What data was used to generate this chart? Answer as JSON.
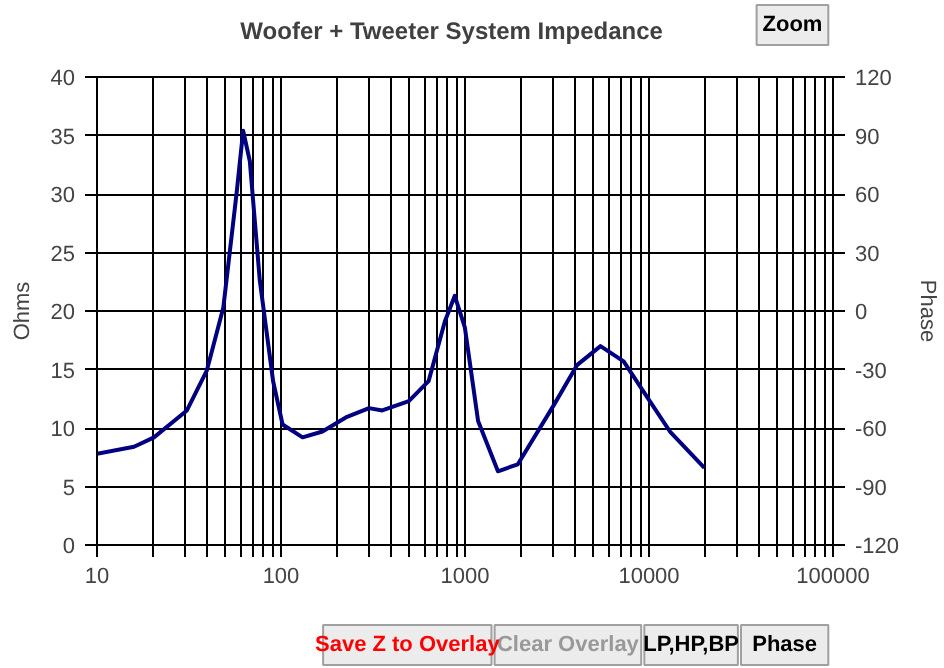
{
  "chart_data": {
    "type": "line",
    "title": "Woofer + Tweeter     System Impedance",
    "ylabel": "Ohms",
    "y2label": "Phase",
    "x": [
      10,
      15.9,
      20.4,
      30.8,
      39.5,
      48.6,
      57.3,
      62.3,
      67.7,
      76.7,
      90.6,
      102,
      131,
      168,
      225,
      301,
      355,
      495,
      634,
      777,
      880,
      998,
      1178,
      1510,
      1937,
      3050,
      4075,
      5450,
      7280,
      10100,
      13000,
      20000
    ],
    "series": [
      {
        "color": "#000080",
        "values": [
          7.8,
          8.4,
          9.2,
          11.5,
          14.9,
          20.3,
          30,
          35.4,
          32.8,
          22.6,
          14,
          10.3,
          9.2,
          9.7,
          10.9,
          11.7,
          11.5,
          12.3,
          14,
          19.1,
          21.3,
          18.6,
          10.6,
          6.3,
          6.9,
          12,
          15.4,
          17,
          15.7,
          12.3,
          9.7,
          6.6
        ]
      }
    ],
    "log": "x",
    "xlim": [
      10,
      100000
    ],
    "xticks": [
      10,
      {
        "value": 20,
        "label": null
      },
      {
        "value": 30,
        "label": null
      },
      {
        "value": 40,
        "label": null
      },
      {
        "value": 50,
        "label": null
      },
      {
        "value": 60,
        "label": null
      },
      {
        "value": 70,
        "label": null
      },
      {
        "value": 80,
        "label": null
      },
      {
        "value": 90,
        "label": null
      },
      100,
      {
        "value": 200,
        "label": null
      },
      {
        "value": 300,
        "label": null
      },
      {
        "value": 400,
        "label": null
      },
      {
        "value": 500,
        "label": null
      },
      {
        "value": 600,
        "label": null
      },
      {
        "value": 700,
        "label": null
      },
      {
        "value": 800,
        "label": null
      },
      {
        "value": 900,
        "label": null
      },
      1000,
      {
        "value": 2000,
        "label": null
      },
      {
        "value": 3000,
        "label": null
      },
      {
        "value": 4000,
        "label": null
      },
      {
        "value": 5000,
        "label": null
      },
      {
        "value": 6000,
        "label": null
      },
      {
        "value": 7000,
        "label": null
      },
      {
        "value": 8000,
        "label": null
      },
      {
        "value": 9000,
        "label": null
      },
      10000,
      {
        "value": 20000,
        "label": null
      },
      {
        "value": 30000,
        "label": null
      },
      {
        "value": 40000,
        "label": null
      },
      {
        "value": 50000,
        "label": null
      },
      {
        "value": 60000,
        "label": null
      },
      {
        "value": 70000,
        "label": null
      },
      {
        "value": 80000,
        "label": null
      },
      {
        "value": 90000,
        "label": null
      },
      100000
    ],
    "ylim": [
      0,
      40
    ],
    "yticks": [
      0,
      5,
      10,
      15,
      20,
      25,
      30,
      35,
      40
    ],
    "y2lim": [
      -120,
      120
    ],
    "y2ticks": [
      -120,
      -90,
      -60,
      -30,
      0,
      30,
      60,
      90,
      120
    ],
    "grid": true,
    "marker": "none",
    "line_style": "solid",
    "annotations": [
      "Zoom",
      "Save Z to Overlay",
      "Clear Overlay",
      "LP,HP,BP",
      "Phase"
    ]
  }
}
